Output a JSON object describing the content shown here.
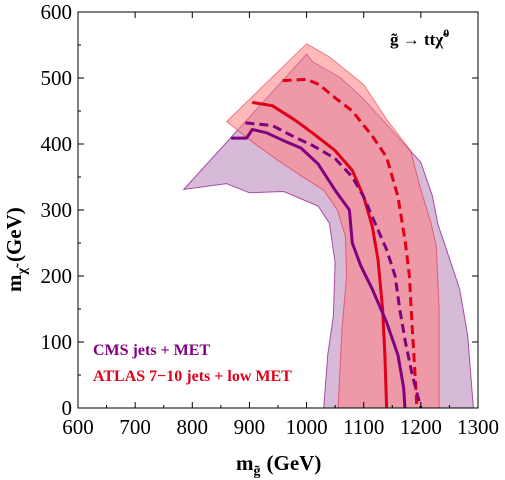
{
  "chart_data": {
    "type": "area",
    "process": {
      "main": "g̃ → tt",
      "chi": "χ̃",
      "chi_sup": "0"
    },
    "xlabel": {
      "main": "m",
      "sub": "g̃",
      "unit": "(GeV)"
    },
    "ylabel": {
      "main": "m",
      "sub": "χ̃",
      "unit": "(GeV)"
    },
    "xlim": [
      600,
      1300
    ],
    "ylim": [
      0,
      600
    ],
    "xticks": [
      600,
      700,
      800,
      900,
      1000,
      1100,
      1200,
      1300
    ],
    "yticks": [
      0,
      100,
      200,
      300,
      400,
      500,
      600
    ],
    "legend": [
      {
        "label": "CMS jets + MET",
        "color": "#800080"
      },
      {
        "label": "ATLAS 7−10 jets + low MET",
        "color": "#e0001a"
      }
    ],
    "series": [
      {
        "name": "CMS jets + MET",
        "role": "band",
        "color": "#800080",
        "fill": "#b67fb8",
        "fill_opacity": 0.55,
        "stroke_opacity": 0.65,
        "outer": [
          [
            785,
            331
          ],
          [
            1000,
            536
          ],
          [
            1010,
            525
          ],
          [
            1060,
            500
          ],
          [
            1100,
            468
          ],
          [
            1150,
            420
          ],
          [
            1200,
            372
          ],
          [
            1220,
            322
          ],
          [
            1230,
            278
          ],
          [
            1243,
            245
          ],
          [
            1268,
            180
          ],
          [
            1282,
            110
          ],
          [
            1292,
            0
          ]
        ],
        "inner": [
          [
            1030,
            0
          ],
          [
            1037,
            80
          ],
          [
            1047,
            140
          ],
          [
            1050,
            220
          ],
          [
            1040,
            280
          ],
          [
            1020,
            306
          ],
          [
            960,
            328
          ],
          [
            900,
            326
          ],
          [
            860,
            340
          ]
        ]
      },
      {
        "name": "ATLAS 7−10 jets + low MET",
        "role": "band",
        "color": "#e0001a",
        "fill": "#ff7f7f",
        "fill_opacity": 0.55,
        "stroke_opacity": 0.45,
        "outer": [
          [
            860,
            434
          ],
          [
            1000,
            552
          ],
          [
            1040,
            532
          ],
          [
            1100,
            490
          ],
          [
            1142,
            435
          ],
          [
            1182,
            390
          ],
          [
            1200,
            330
          ],
          [
            1218,
            280
          ],
          [
            1227,
            245
          ],
          [
            1232,
            150
          ],
          [
            1232,
            0
          ]
        ],
        "inner": [
          [
            1055,
            0
          ],
          [
            1062,
            120
          ],
          [
            1070,
            200
          ],
          [
            1068,
            260
          ],
          [
            1054,
            300
          ],
          [
            1030,
            330
          ],
          [
            990,
            352
          ],
          [
            950,
            375
          ],
          [
            910,
            400
          ]
        ]
      },
      {
        "name": "ATLAS 7−10 jets + low MET",
        "role": "central",
        "style": "solid",
        "color": "#e0001a",
        "points": [
          [
            905,
            463
          ],
          [
            940,
            458
          ],
          [
            980,
            436
          ],
          [
            1010,
            417
          ],
          [
            1050,
            390
          ],
          [
            1080,
            360
          ],
          [
            1100,
            320
          ],
          [
            1115,
            275
          ],
          [
            1125,
            225
          ],
          [
            1133,
            150
          ],
          [
            1137,
            80
          ],
          [
            1140,
            0
          ]
        ]
      },
      {
        "name": "ATLAS 7−10 jets + low MET",
        "role": "expected",
        "style": "dashed",
        "color": "#e0001a",
        "points": [
          [
            958,
            496
          ],
          [
            1000,
            498
          ],
          [
            1022,
            490
          ],
          [
            1050,
            470
          ],
          [
            1080,
            450
          ],
          [
            1115,
            412
          ],
          [
            1140,
            380
          ],
          [
            1160,
            320
          ],
          [
            1173,
            250
          ],
          [
            1180,
            200
          ],
          [
            1185,
            120
          ],
          [
            1190,
            50
          ],
          [
            1193,
            0
          ]
        ]
      },
      {
        "name": "CMS jets + MET",
        "role": "central",
        "style": "solid",
        "color": "#800080",
        "points": [
          [
            868,
            409
          ],
          [
            895,
            409
          ],
          [
            905,
            422
          ],
          [
            930,
            417
          ],
          [
            960,
            405
          ],
          [
            990,
            394
          ],
          [
            1020,
            370
          ],
          [
            1050,
            330
          ],
          [
            1075,
            300
          ],
          [
            1080,
            250
          ],
          [
            1095,
            215
          ],
          [
            1115,
            180
          ],
          [
            1140,
            130
          ],
          [
            1160,
            80
          ],
          [
            1170,
            30
          ],
          [
            1172,
            0
          ]
        ]
      },
      {
        "name": "CMS jets + MET",
        "role": "expected",
        "style": "dashed",
        "color": "#800080",
        "points": [
          [
            893,
            432
          ],
          [
            940,
            428
          ],
          [
            980,
            410
          ],
          [
            1010,
            398
          ],
          [
            1050,
            378
          ],
          [
            1080,
            350
          ],
          [
            1100,
            320
          ],
          [
            1120,
            280
          ],
          [
            1140,
            240
          ],
          [
            1155,
            200
          ],
          [
            1163,
            150
          ],
          [
            1173,
            100
          ],
          [
            1185,
            50
          ],
          [
            1200,
            0
          ]
        ]
      }
    ]
  }
}
